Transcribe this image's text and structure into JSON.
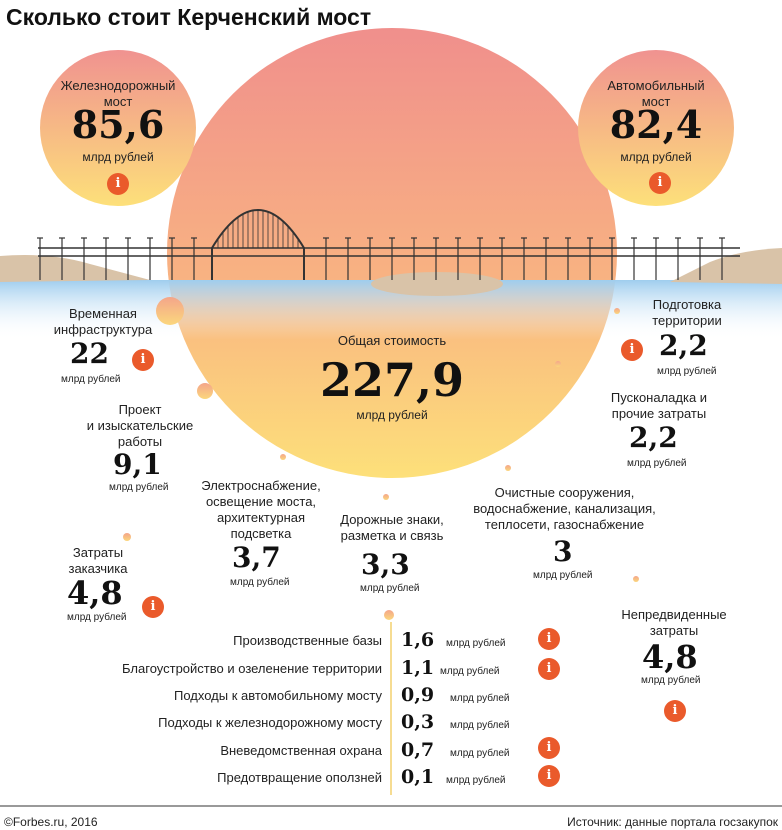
{
  "title": "Сколько стоит Керченский мост",
  "colors": {
    "sun_top": "#f08f8c",
    "sun_bottom": "#fde07a",
    "water": "#a9d3f0",
    "land": "#d9c3a8",
    "info": "#ea5a2b",
    "dot": "#f4b27a"
  },
  "chart_data": {
    "type": "bubble",
    "unit": "млрд рублей",
    "total": {
      "label": "Общая стоимость",
      "value": "227,9"
    },
    "items": [
      {
        "label": "Железнодорожный мост",
        "value": "85,6"
      },
      {
        "label": "Автомобильный мост",
        "value": "82,4"
      },
      {
        "label": "Временная инфраструктура",
        "value": "22"
      },
      {
        "label": "Подготовка территории",
        "value": "2,2"
      },
      {
        "label": "Проект и изыскательские работы",
        "value": "9,1"
      },
      {
        "label": "Пусконаладка и прочие затраты",
        "value": "2,2"
      },
      {
        "label": "Электроснабжение, освещение моста, архитектурная подсветка",
        "value": "3,7"
      },
      {
        "label": "Дорожные знаки, разметка и связь",
        "value": "3,3"
      },
      {
        "label": "Очистные сооружения, водоснабжение, канализация, теплосети, газоснабжение",
        "value": "3"
      },
      {
        "label": "Затраты заказчика",
        "value": "4,8"
      },
      {
        "label": "Непредвиденные затраты",
        "value": "4,8"
      }
    ],
    "list": [
      {
        "label": "Производственные базы",
        "value": "1,6"
      },
      {
        "label": "Благоустройство и озеленение территории",
        "value": "1,1"
      },
      {
        "label": "Подходы к автомобильному мосту",
        "value": "0,9"
      },
      {
        "label": "Подходы к железнодорожному мосту",
        "value": "0,3"
      },
      {
        "label": "Вневедомственная охрана",
        "value": "0,7"
      },
      {
        "label": "Предотвращение оползней",
        "value": "0,1"
      }
    ]
  },
  "labels": {
    "rail_1": "Железнодорожный",
    "rail_2": "мост",
    "auto_1": "Автомобильный",
    "auto_2": "мост",
    "temp_1": "Временная",
    "temp_2": "инфраструктура",
    "prep_1": "Подготовка",
    "prep_2": "территории",
    "proj_1": "Проект",
    "proj_2": "и изыскательские",
    "proj_3": "работы",
    "pusk_1": "Пусконаладка и",
    "pusk_2": "прочие затраты",
    "elec_1": "Электроснабжение,",
    "elec_2": "освещение моста,",
    "elec_3": "архитектурная",
    "elec_4": "подсветка",
    "road_1": "Дорожные знаки,",
    "road_2": "разметка и связь",
    "water_1": "Очистные сооружения,",
    "water_2": "водоснабжение, канализация,",
    "water_3": "теплосети, газоснабжение",
    "cust_1": "Затраты",
    "cust_2": "заказчика",
    "unf_1": "Непредвиденные",
    "unf_2": "затраты"
  },
  "info_icon": "i",
  "footer": {
    "left": "©Forbes.ru, 2016",
    "right": "Источник: данные портала госзакупок"
  }
}
